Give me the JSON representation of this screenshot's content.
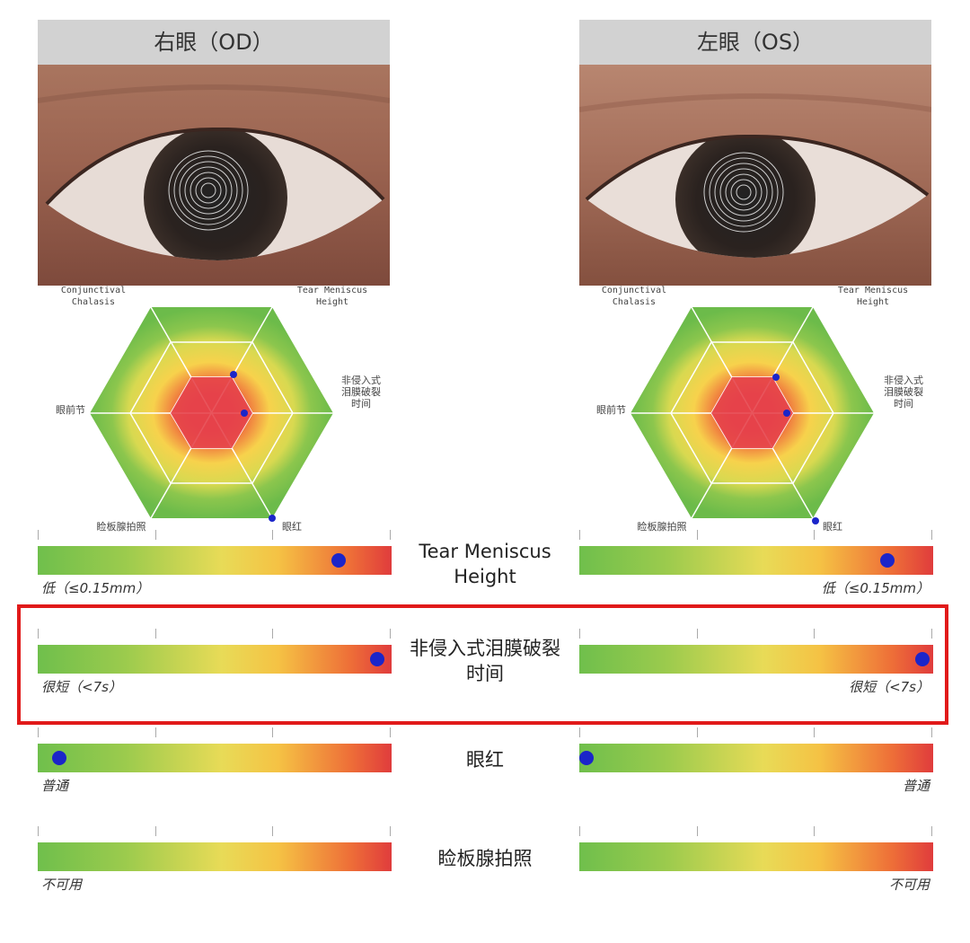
{
  "eyes": {
    "od": {
      "title": "右眼（OD）"
    },
    "os": {
      "title": "左眼（OS）"
    }
  },
  "radar": {
    "axes": [
      {
        "label": "Conjunctival\nChalasis"
      },
      {
        "label": "Tear Meniscus\nHeight"
      },
      {
        "label": "非侵入式\n泪膜破裂\n时间"
      },
      {
        "label": "眼红"
      },
      {
        "label": "睑板腺拍照"
      },
      {
        "label": "眼前节"
      }
    ]
  },
  "metrics": [
    {
      "title": "Tear Meniscus\nHeight",
      "od": {
        "note": "低（≤0.15mm）",
        "value": 0.85
      },
      "os": {
        "note": "低（≤0.15mm）",
        "value": 0.87
      }
    },
    {
      "title": "非侵入式泪膜破裂\n时间",
      "od": {
        "note": "很短（<7s）",
        "value": 0.96
      },
      "os": {
        "note": "很短（<7s）",
        "value": 0.97
      }
    },
    {
      "title": "眼红",
      "od": {
        "note": "普通",
        "value": 0.06
      },
      "os": {
        "note": "普通",
        "value": 0.02
      }
    },
    {
      "title": "睑板腺拍照",
      "od": {
        "note": "不可用",
        "value": null
      },
      "os": {
        "note": "不可用",
        "value": null
      }
    }
  ],
  "colors": {
    "highlight": "#e11a1a",
    "dot": "#1b25c9"
  }
}
